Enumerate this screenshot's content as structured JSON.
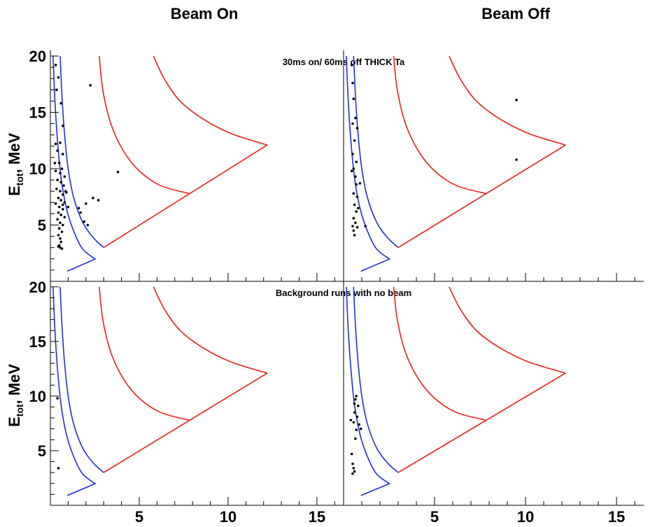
{
  "chart_data": {
    "type": "scatter",
    "column_titles": [
      "Beam On",
      "Beam Off"
    ],
    "ylabel_main": "E",
    "ylabel_sub": "tot",
    "ylabel_tail": ", MeV",
    "x_ticks": [
      5,
      10,
      15
    ],
    "y_ticks": [
      5,
      10,
      15,
      20
    ],
    "xlim": [
      0,
      16.5
    ],
    "ylim": [
      0,
      20.5
    ],
    "row_titles": [
      "30ms on/ 60ms off THICK Ta",
      "Background runs with no beam"
    ],
    "colors": {
      "red": "#e8201c",
      "blue": "#1c2ee0",
      "points": "#000000"
    },
    "curves": {
      "blue_inner": [
        [
          0.15,
          20
        ],
        [
          0.25,
          16.2
        ],
        [
          0.4,
          12.5
        ],
        [
          0.6,
          9.2
        ],
        [
          0.9,
          6.5
        ],
        [
          1.3,
          4.5
        ],
        [
          1.8,
          2.9
        ],
        [
          2.5,
          2.0
        ]
      ],
      "blue_outer": [
        [
          0.55,
          20
        ],
        [
          0.65,
          16.5
        ],
        [
          0.8,
          13
        ],
        [
          1.0,
          10
        ],
        [
          1.3,
          7.5
        ],
        [
          1.8,
          5.3
        ],
        [
          2.4,
          3.9
        ],
        [
          3.0,
          3.0
        ]
      ],
      "blue_base": [
        [
          0.95,
          0.9
        ],
        [
          2.55,
          2.0
        ]
      ],
      "red_inner": [
        [
          2.75,
          20
        ],
        [
          2.95,
          17
        ],
        [
          3.4,
          14
        ],
        [
          4.1,
          11.6
        ],
        [
          5.0,
          9.8
        ],
        [
          6.2,
          8.5
        ],
        [
          7.8,
          7.8
        ]
      ],
      "red_outer": [
        [
          5.8,
          20
        ],
        [
          6.4,
          18
        ],
        [
          7.3,
          16
        ],
        [
          8.6,
          14.4
        ],
        [
          10.2,
          13.1
        ],
        [
          12.2,
          12.1
        ]
      ],
      "red_base": [
        [
          3.0,
          3.0
        ],
        [
          12.2,
          12.1
        ]
      ]
    },
    "panels": [
      {
        "name": "beam-on-thick-ta",
        "points": [
          [
            0.3,
            19.2
          ],
          [
            0.35,
            17.0
          ],
          [
            0.45,
            18.1
          ],
          [
            0.6,
            15.8
          ],
          [
            0.7,
            13.8
          ],
          [
            0.55,
            12.3
          ],
          [
            0.3,
            12.2
          ],
          [
            0.4,
            11.6
          ],
          [
            0.7,
            11.3
          ],
          [
            0.5,
            10.5
          ],
          [
            0.65,
            10.0
          ],
          [
            0.3,
            9.8
          ],
          [
            0.55,
            9.6
          ],
          [
            0.8,
            9.3
          ],
          [
            0.4,
            9.0
          ],
          [
            0.6,
            8.8
          ],
          [
            0.75,
            8.5
          ],
          [
            0.35,
            8.2
          ],
          [
            0.55,
            8.0
          ],
          [
            0.7,
            7.7
          ],
          [
            0.45,
            7.4
          ],
          [
            0.6,
            7.2
          ],
          [
            0.8,
            7.0
          ],
          [
            0.3,
            6.9
          ],
          [
            0.5,
            6.6
          ],
          [
            0.7,
            6.4
          ],
          [
            0.45,
            6.1
          ],
          [
            0.6,
            5.9
          ],
          [
            0.8,
            5.7
          ],
          [
            0.4,
            5.5
          ],
          [
            0.55,
            5.2
          ],
          [
            0.7,
            5.0
          ],
          [
            0.5,
            4.7
          ],
          [
            0.65,
            4.4
          ],
          [
            0.45,
            4.1
          ],
          [
            0.55,
            3.8
          ],
          [
            0.6,
            3.5
          ],
          [
            0.5,
            3.2
          ],
          [
            0.55,
            3.0
          ],
          [
            0.65,
            2.9
          ],
          [
            0.45,
            3.1
          ],
          [
            0.7,
            6.8
          ],
          [
            0.85,
            8.0
          ],
          [
            0.25,
            10.5
          ],
          [
            0.9,
            7.9
          ],
          [
            1.0,
            6.6
          ],
          [
            1.6,
            6.5
          ],
          [
            1.7,
            6.1
          ],
          [
            2.0,
            6.9
          ],
          [
            2.4,
            7.4
          ],
          [
            2.7,
            7.2
          ],
          [
            1.9,
            5.3
          ],
          [
            2.1,
            5.0
          ],
          [
            2.25,
            17.4
          ],
          [
            3.8,
            9.7
          ]
        ]
      },
      {
        "name": "beam-off-thick-ta",
        "points": [
          [
            0.45,
            19.2
          ],
          [
            0.5,
            17.6
          ],
          [
            0.55,
            16.2
          ],
          [
            0.65,
            14.5
          ],
          [
            0.5,
            14.0
          ],
          [
            0.75,
            13.6
          ],
          [
            0.6,
            12.5
          ],
          [
            0.5,
            11.3
          ],
          [
            0.7,
            10.6
          ],
          [
            0.55,
            10.0
          ],
          [
            0.45,
            9.8
          ],
          [
            0.65,
            9.3
          ],
          [
            0.9,
            8.7
          ],
          [
            0.7,
            8.6
          ],
          [
            0.55,
            7.8
          ],
          [
            0.75,
            7.5
          ],
          [
            0.6,
            6.8
          ],
          [
            0.8,
            6.5
          ],
          [
            0.7,
            6.2
          ],
          [
            0.55,
            5.6
          ],
          [
            0.65,
            5.2
          ],
          [
            0.5,
            4.9
          ],
          [
            0.75,
            4.8
          ],
          [
            0.55,
            4.5
          ],
          [
            0.6,
            4.1
          ],
          [
            1.2,
            4.9
          ],
          [
            9.5,
            16.1
          ],
          [
            9.5,
            10.8
          ]
        ]
      },
      {
        "name": "beam-on-background",
        "points": [
          [
            0.4,
            9.8
          ],
          [
            0.45,
            3.4
          ]
        ]
      },
      {
        "name": "beam-off-background",
        "points": [
          [
            0.45,
            4.7
          ],
          [
            0.5,
            3.8
          ],
          [
            0.55,
            3.4
          ],
          [
            0.6,
            3.1
          ],
          [
            0.5,
            2.9
          ],
          [
            0.4,
            7.8
          ],
          [
            0.55,
            7.6
          ],
          [
            0.6,
            8.5
          ],
          [
            0.65,
            9.7
          ],
          [
            0.7,
            10.0
          ],
          [
            0.6,
            9.3
          ],
          [
            0.8,
            9.1
          ],
          [
            0.75,
            8.1
          ],
          [
            0.85,
            7.4
          ],
          [
            0.7,
            6.9
          ],
          [
            0.95,
            7.0
          ],
          [
            0.65,
            6.1
          ]
        ]
      }
    ]
  }
}
